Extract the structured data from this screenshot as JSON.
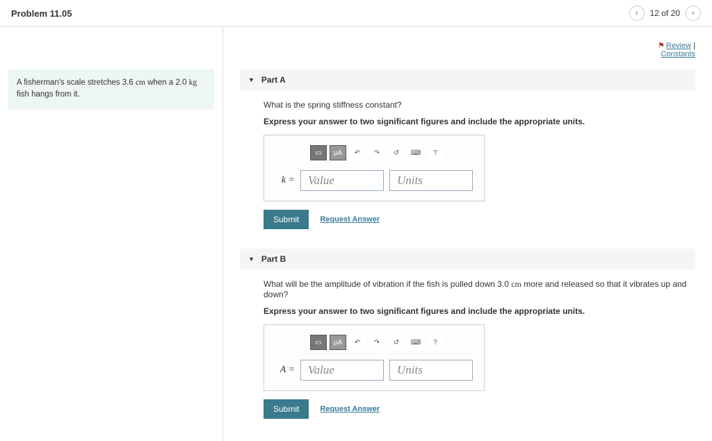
{
  "header": {
    "title": "Problem 11.05",
    "page_indicator": "12 of 20"
  },
  "topLinks": {
    "review": "Review",
    "constants": "Constants",
    "separator": " | "
  },
  "problem": {
    "text_prefix": "A fisherman's scale stretches 3.6 ",
    "unit1": "cm",
    "text_mid": " when a 2.0 ",
    "unit2": "kg",
    "text_suffix": " fish hangs from it."
  },
  "parts": [
    {
      "title": "Part A",
      "question": "What is the spring stiffness constant?",
      "instruction": "Express your answer to two significant figures and include the appropriate units.",
      "variable": "k =",
      "value_placeholder": "Value",
      "units_placeholder": "Units",
      "submit": "Submit",
      "request": "Request Answer",
      "toolbar_mu": "μΑ",
      "toolbar_help": "?"
    },
    {
      "title": "Part B",
      "question_prefix": "What will be the amplitude of vibration if the fish is pulled down 3.0 ",
      "question_unit": "cm",
      "question_suffix": " more and released so that it vibrates up and down?",
      "instruction": "Express your answer to two significant figures and include the appropriate units.",
      "variable": "A =",
      "value_placeholder": "Value",
      "units_placeholder": "Units",
      "submit": "Submit",
      "request": "Request Answer",
      "toolbar_mu": "μΑ",
      "toolbar_help": "?"
    }
  ]
}
